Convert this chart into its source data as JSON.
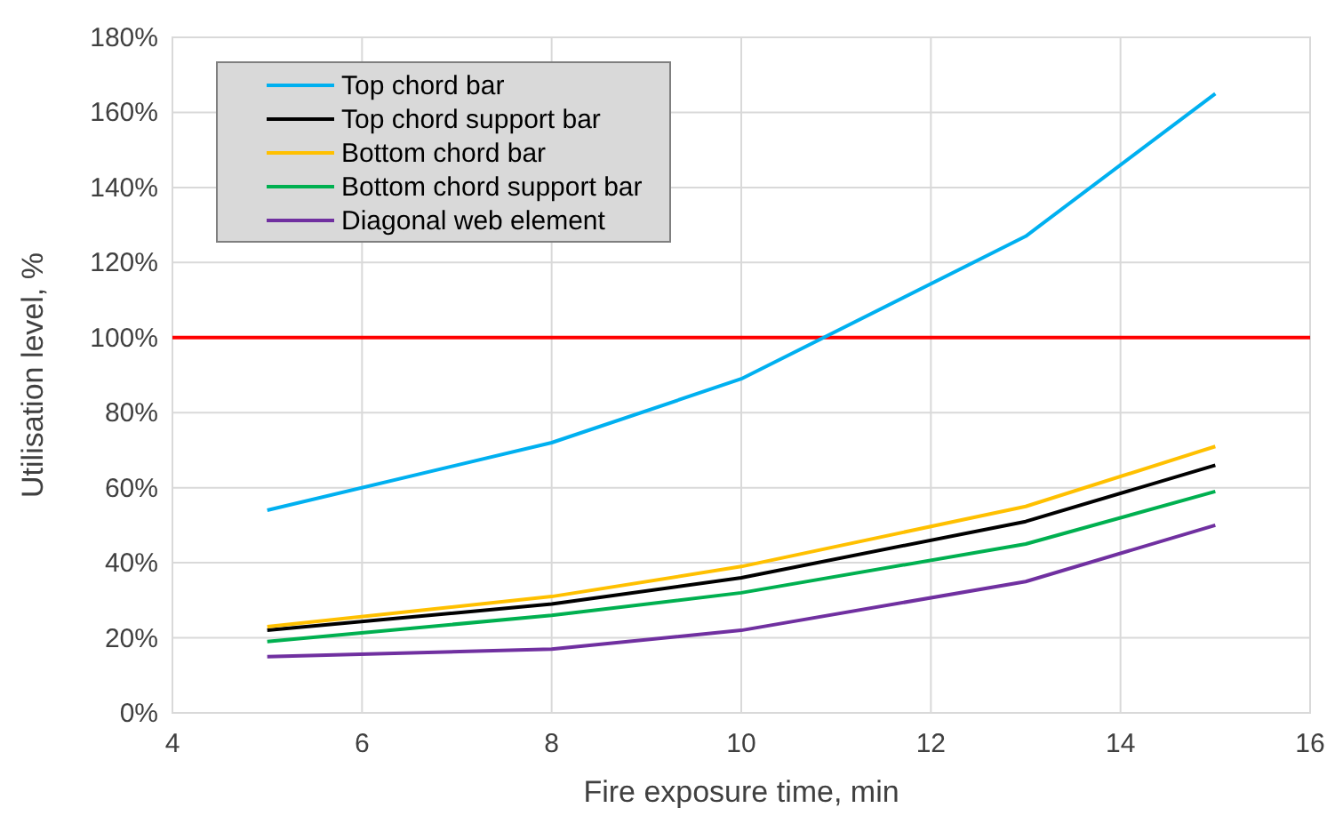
{
  "chart_data": {
    "type": "line",
    "xlabel": "Fire exposure time, min",
    "ylabel": "Utilisation level, %",
    "x": [
      5,
      8,
      10,
      13,
      15
    ],
    "series": [
      {
        "name": "Top chord bar",
        "color": "#00b0f0",
        "values": [
          54,
          72,
          89,
          127,
          165
        ]
      },
      {
        "name": "Top chord support bar",
        "color": "#000000",
        "values": [
          22,
          29,
          36,
          51,
          66
        ]
      },
      {
        "name": "Bottom chord bar",
        "color": "#ffc000",
        "values": [
          23,
          31,
          39,
          55,
          71
        ]
      },
      {
        "name": "Bottom chord support bar",
        "color": "#00b050",
        "values": [
          19,
          26,
          32,
          45,
          59
        ]
      },
      {
        "name": "Diagonal web element",
        "color": "#7030a0",
        "values": [
          15,
          17,
          22,
          35,
          50
        ]
      }
    ],
    "xlim": [
      4,
      16
    ],
    "xticks": [
      4,
      6,
      8,
      10,
      12,
      14,
      16
    ],
    "ylim": [
      0,
      180
    ],
    "yticks": [
      {
        "value": 0,
        "label": "0%"
      },
      {
        "value": 20,
        "label": "20%"
      },
      {
        "value": 40,
        "label": "40%"
      },
      {
        "value": 60,
        "label": "60%"
      },
      {
        "value": 80,
        "label": "80%"
      },
      {
        "value": 100,
        "label": "100%"
      },
      {
        "value": 120,
        "label": "120%"
      },
      {
        "value": 140,
        "label": "140%"
      },
      {
        "value": 160,
        "label": "160%"
      },
      {
        "value": 180,
        "label": "180%"
      }
    ],
    "ref_lines": [
      {
        "axis": "y",
        "value": 100,
        "color": "#ff0000"
      }
    ],
    "grid": true,
    "legend": "top left",
    "marker": "none",
    "line_style": "solid"
  }
}
